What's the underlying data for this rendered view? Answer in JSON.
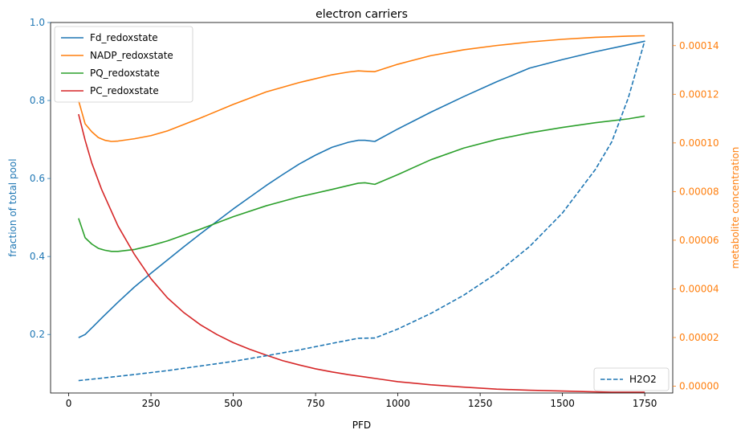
{
  "chart_data": {
    "type": "line",
    "title": "electron carriers",
    "xlabel": "PFD",
    "ylabel_left": "fraction of total pool",
    "ylabel_right": "metabolite concentration",
    "xlim": [
      -55,
      1835
    ],
    "ylim_left": [
      0.05,
      1.0
    ],
    "ylim_right": [
      -2.8e-06,
      0.0001495
    ],
    "x_ticks": [
      0,
      250,
      500,
      750,
      1000,
      1250,
      1500,
      1750
    ],
    "y_ticks_left": [
      0.2,
      0.4,
      0.6,
      0.8,
      1.0
    ],
    "y_ticks_left_labels": [
      "0.2",
      "0.4",
      "0.6",
      "0.8",
      "1.0"
    ],
    "y_ticks_right": [
      0,
      2e-05,
      4e-05,
      6e-05,
      8e-05,
      0.0001,
      0.00012,
      0.00014
    ],
    "y_ticks_right_labels": [
      "0.00000",
      "0.00002",
      "0.00004",
      "0.00006",
      "0.00008",
      "0.00010",
      "0.00012",
      "0.00014"
    ],
    "grid": false,
    "legend_left_placement": "top-left",
    "legend_right_placement": "bottom-right",
    "colors": {
      "left_axis": "#1f77b4",
      "right_axis": "#ff7f0e"
    },
    "series": [
      {
        "name": "Fd_redoxstate",
        "axis": "left",
        "style": "solid",
        "color": "#1f77b4",
        "x": [
          30,
          50,
          80,
          100,
          150,
          200,
          250,
          300,
          350,
          400,
          450,
          500,
          550,
          600,
          650,
          700,
          750,
          800,
          850,
          880,
          900,
          930,
          1000,
          1100,
          1200,
          1300,
          1400,
          1500,
          1600,
          1700,
          1750
        ],
        "y": [
          0.192,
          0.2,
          0.225,
          0.242,
          0.283,
          0.322,
          0.357,
          0.391,
          0.425,
          0.458,
          0.49,
          0.522,
          0.552,
          0.582,
          0.61,
          0.637,
          0.66,
          0.68,
          0.693,
          0.698,
          0.698,
          0.695,
          0.727,
          0.77,
          0.81,
          0.848,
          0.883,
          0.905,
          0.925,
          0.943,
          0.952
        ]
      },
      {
        "name": "NADP_redoxstate",
        "axis": "left",
        "style": "solid",
        "color": "#ff7f0e",
        "x": [
          30,
          50,
          70,
          90,
          110,
          130,
          150,
          200,
          250,
          300,
          400,
          500,
          600,
          700,
          800,
          850,
          880,
          900,
          930,
          1000,
          1100,
          1200,
          1300,
          1400,
          1500,
          1600,
          1700,
          1750
        ],
        "y": [
          0.8,
          0.74,
          0.72,
          0.705,
          0.698,
          0.695,
          0.696,
          0.702,
          0.71,
          0.722,
          0.755,
          0.79,
          0.822,
          0.846,
          0.866,
          0.873,
          0.876,
          0.875,
          0.874,
          0.893,
          0.915,
          0.93,
          0.941,
          0.95,
          0.957,
          0.962,
          0.965,
          0.966
        ]
      },
      {
        "name": "PQ_redoxstate",
        "axis": "left",
        "style": "solid",
        "color": "#2ca02c",
        "x": [
          30,
          50,
          70,
          90,
          110,
          130,
          150,
          200,
          250,
          300,
          400,
          500,
          600,
          700,
          800,
          850,
          880,
          900,
          930,
          1000,
          1100,
          1200,
          1300,
          1400,
          1500,
          1600,
          1700,
          1750
        ],
        "y": [
          0.498,
          0.448,
          0.432,
          0.421,
          0.416,
          0.413,
          0.413,
          0.418,
          0.428,
          0.44,
          0.47,
          0.502,
          0.53,
          0.553,
          0.572,
          0.582,
          0.588,
          0.589,
          0.585,
          0.61,
          0.648,
          0.678,
          0.7,
          0.717,
          0.731,
          0.743,
          0.753,
          0.76
        ]
      },
      {
        "name": "PC_redoxstate",
        "axis": "left",
        "style": "solid",
        "color": "#d62728",
        "x": [
          30,
          50,
          70,
          100,
          150,
          200,
          250,
          300,
          350,
          400,
          450,
          500,
          550,
          600,
          650,
          700,
          750,
          800,
          850,
          900,
          950,
          1000,
          1100,
          1200,
          1300,
          1400,
          1500,
          1600,
          1650,
          1700,
          1750
        ],
        "y": [
          0.765,
          0.698,
          0.64,
          0.572,
          0.478,
          0.405,
          0.343,
          0.294,
          0.256,
          0.225,
          0.2,
          0.179,
          0.162,
          0.147,
          0.133,
          0.122,
          0.112,
          0.104,
          0.097,
          0.091,
          0.085,
          0.079,
          0.071,
          0.065,
          0.06,
          0.057,
          0.055,
          0.053,
          0.052,
          0.052,
          0.052
        ]
      },
      {
        "name": "H2O2",
        "axis": "right",
        "style": "dashed",
        "color": "#1f77b4",
        "x": [
          30,
          100,
          200,
          300,
          400,
          500,
          600,
          700,
          800,
          880,
          930,
          1000,
          1100,
          1200,
          1300,
          1400,
          1500,
          1600,
          1650,
          1700,
          1750
        ],
        "y": [
          2.3e-06,
          3.3e-06,
          4.8e-06,
          6.4e-06,
          8.3e-06,
          1.02e-05,
          1.25e-05,
          1.49e-05,
          1.76e-05,
          1.97e-05,
          1.98e-05,
          2.35e-05,
          2.99e-05,
          3.74e-05,
          4.64e-05,
          5.74e-05,
          7.12e-05,
          8.91e-05,
          0.0001005,
          0.0001185,
          0.000142
        ]
      }
    ]
  }
}
